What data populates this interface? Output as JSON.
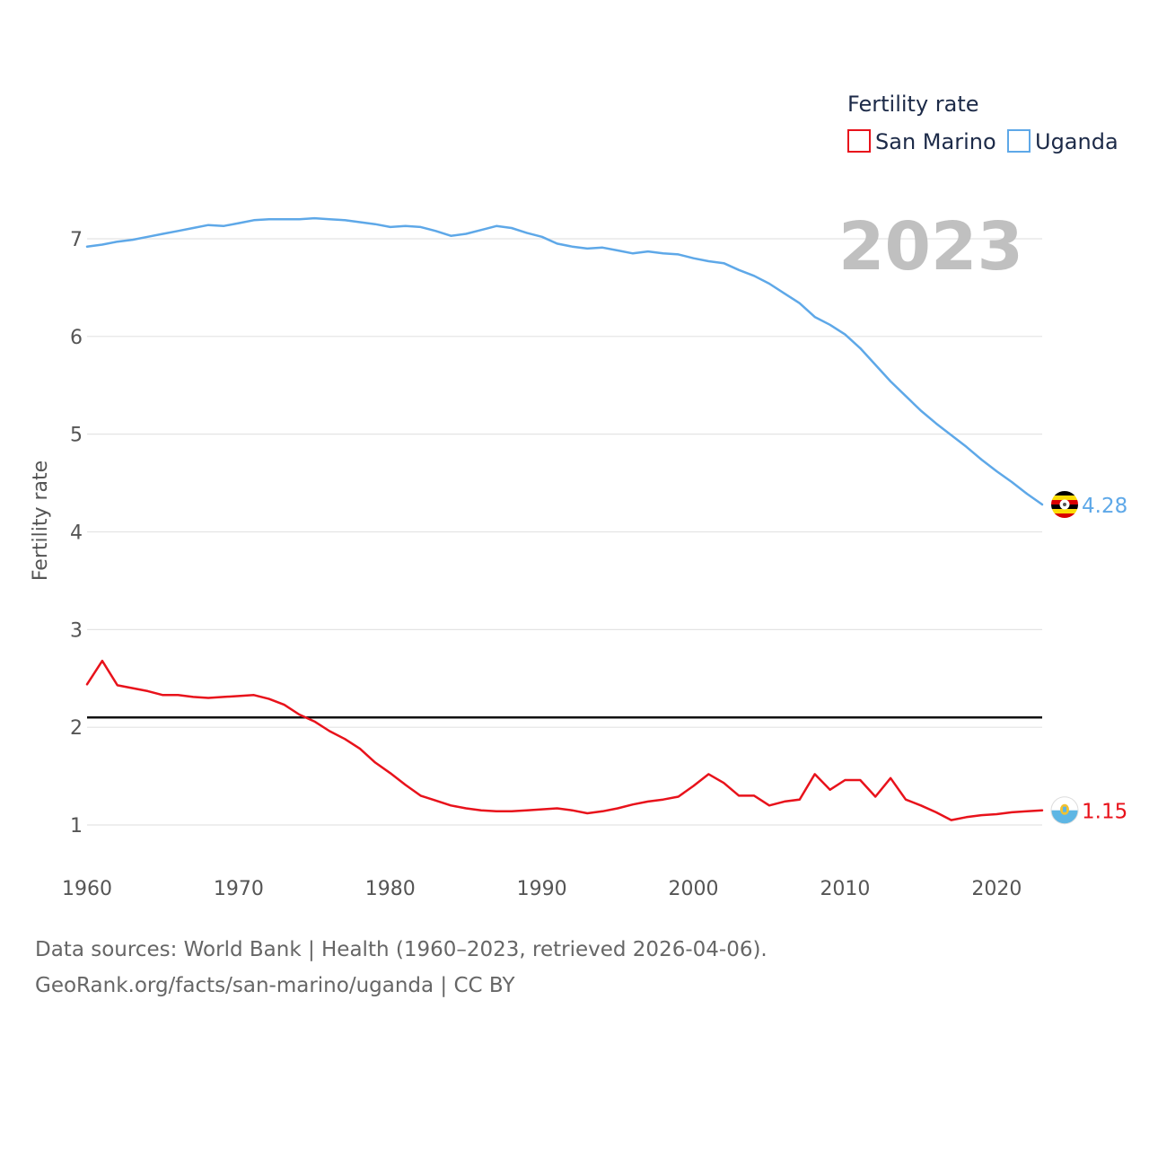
{
  "chart_data": {
    "type": "line",
    "ylabel": "Fertility rate",
    "legend_title": "Fertility rate",
    "current_year": "2023",
    "ylim": [
      0.55,
      7.45
    ],
    "xlim": [
      1960,
      2023
    ],
    "y_ticks": [
      1,
      2,
      3,
      4,
      5,
      6,
      7
    ],
    "x_ticks": [
      1960,
      1970,
      1980,
      1990,
      2000,
      2010,
      2020
    ],
    "reference_line": 2.1,
    "series": [
      {
        "name": "San Marino",
        "color": "#e8121b",
        "end_label": "1.15",
        "flag_icon": "san-marino-flag-icon",
        "x": [
          1960,
          1961,
          1962,
          1963,
          1964,
          1965,
          1966,
          1967,
          1968,
          1969,
          1970,
          1971,
          1972,
          1973,
          1974,
          1975,
          1976,
          1977,
          1978,
          1979,
          1980,
          1981,
          1982,
          1983,
          1984,
          1985,
          1986,
          1987,
          1988,
          1989,
          1990,
          1991,
          1992,
          1993,
          1994,
          1995,
          1996,
          1997,
          1998,
          1999,
          2000,
          2001,
          2002,
          2003,
          2004,
          2005,
          2006,
          2007,
          2008,
          2009,
          2010,
          2011,
          2012,
          2013,
          2014,
          2015,
          2016,
          2017,
          2018,
          2019,
          2020,
          2021,
          2022,
          2023
        ],
        "values": [
          2.44,
          2.68,
          2.43,
          2.4,
          2.37,
          2.33,
          2.33,
          2.31,
          2.3,
          2.31,
          2.32,
          2.33,
          2.29,
          2.23,
          2.13,
          2.06,
          1.96,
          1.88,
          1.78,
          1.64,
          1.53,
          1.41,
          1.3,
          1.25,
          1.2,
          1.17,
          1.15,
          1.14,
          1.14,
          1.15,
          1.16,
          1.17,
          1.15,
          1.12,
          1.14,
          1.17,
          1.21,
          1.24,
          1.26,
          1.29,
          1.4,
          1.52,
          1.43,
          1.3,
          1.3,
          1.2,
          1.24,
          1.26,
          1.52,
          1.36,
          1.46,
          1.46,
          1.29,
          1.48,
          1.26,
          1.2,
          1.13,
          1.05,
          1.08,
          1.1,
          1.11,
          1.13,
          1.14,
          1.15
        ]
      },
      {
        "name": "Uganda",
        "color": "#5ea8e8",
        "end_label": "4.28",
        "flag_icon": "uganda-flag-icon",
        "x": [
          1960,
          1961,
          1962,
          1963,
          1964,
          1965,
          1966,
          1967,
          1968,
          1969,
          1970,
          1971,
          1972,
          1973,
          1974,
          1975,
          1976,
          1977,
          1978,
          1979,
          1980,
          1981,
          1982,
          1983,
          1984,
          1985,
          1986,
          1987,
          1988,
          1989,
          1990,
          1991,
          1992,
          1993,
          1994,
          1995,
          1996,
          1997,
          1998,
          1999,
          2000,
          2001,
          2002,
          2003,
          2004,
          2005,
          2006,
          2007,
          2008,
          2009,
          2010,
          2011,
          2012,
          2013,
          2014,
          2015,
          2016,
          2017,
          2018,
          2019,
          2020,
          2021,
          2022,
          2023
        ],
        "values": [
          6.92,
          6.94,
          6.97,
          6.99,
          7.02,
          7.05,
          7.08,
          7.11,
          7.14,
          7.13,
          7.16,
          7.19,
          7.2,
          7.2,
          7.2,
          7.21,
          7.2,
          7.19,
          7.17,
          7.15,
          7.12,
          7.13,
          7.12,
          7.08,
          7.03,
          7.05,
          7.09,
          7.13,
          7.11,
          7.06,
          7.02,
          6.95,
          6.92,
          6.9,
          6.91,
          6.88,
          6.85,
          6.87,
          6.85,
          6.84,
          6.8,
          6.77,
          6.75,
          6.68,
          6.62,
          6.54,
          6.44,
          6.34,
          6.2,
          6.12,
          6.02,
          5.88,
          5.71,
          5.54,
          5.39,
          5.24,
          5.11,
          4.99,
          4.87,
          4.74,
          4.62,
          4.51,
          4.39,
          4.28
        ]
      }
    ]
  },
  "footer": {
    "line1": "Data sources: World Bank | Health (1960–2023, retrieved 2026-04-06).",
    "line2": "GeoRank.org/facts/san-marino/uganda | CC BY"
  }
}
